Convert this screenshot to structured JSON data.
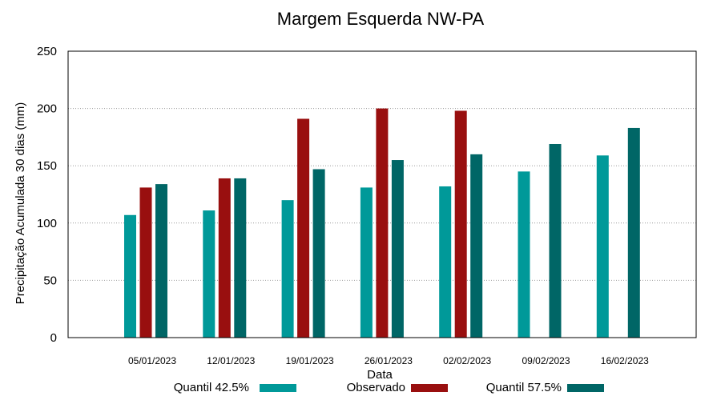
{
  "chart_data": {
    "type": "bar",
    "title": "Margem Esquerda NW-PA",
    "xlabel": "Data",
    "ylabel": "Precipitação Acumulada 30 dias (mm)",
    "ylim": [
      0,
      250
    ],
    "yticks": [
      0,
      50,
      100,
      150,
      200,
      250
    ],
    "grid": true,
    "legend_position": "bottom",
    "categories": [
      "05/01/2023",
      "12/01/2023",
      "19/01/2023",
      "26/01/2023",
      "02/02/2023",
      "09/02/2023",
      "16/02/2023"
    ],
    "series": [
      {
        "name": "Quantil 42.5%",
        "color": "#009999",
        "values": [
          107,
          111,
          120,
          131,
          132,
          145,
          159
        ]
      },
      {
        "name": "Observado",
        "color": "#990f0f",
        "values": [
          131,
          139,
          191,
          200,
          198,
          null,
          null
        ]
      },
      {
        "name": "Quantil 57.5%",
        "color": "#006666",
        "values": [
          134,
          139,
          147,
          155,
          160,
          169,
          183
        ]
      }
    ]
  }
}
